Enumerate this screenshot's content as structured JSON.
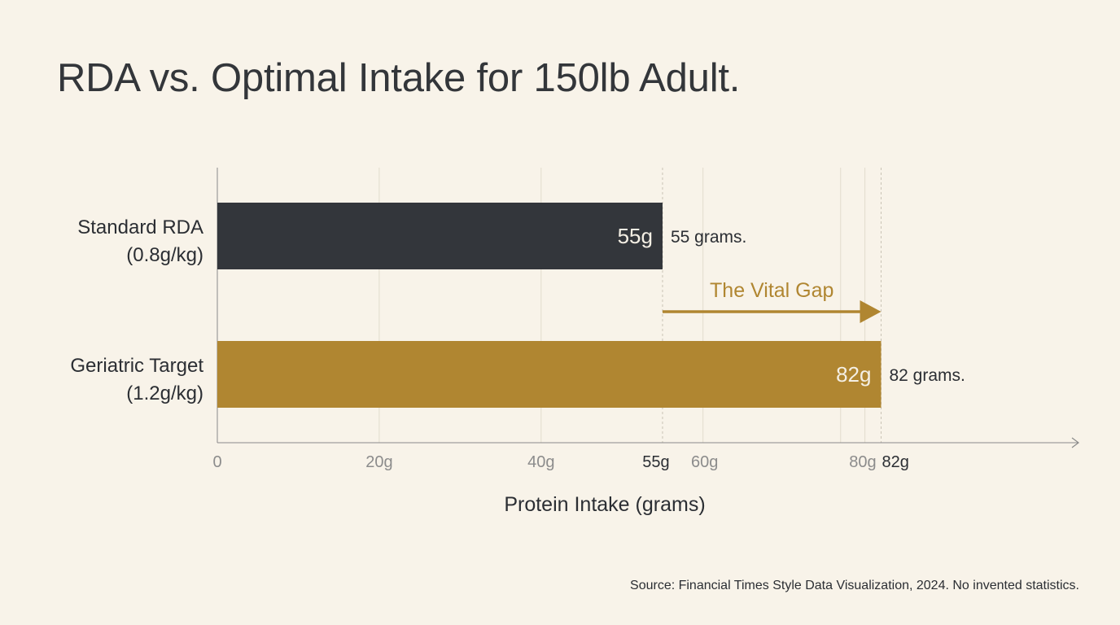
{
  "title": "RDA vs. Optimal Intake for 150lb Adult.",
  "source": "Source: Financial Times Style Data Visualization, 2024. No invented statistics.",
  "colors": {
    "background": "#f8f3e9",
    "rda_bar": "#33363b",
    "target_bar": "#b08631",
    "gap_arrow": "#b08631",
    "grid": "#e2dccd",
    "axis": "#8a8a8a",
    "tick_text": "#8c8c8c",
    "text": "#2b2e33"
  },
  "chart_data": {
    "type": "bar",
    "orientation": "horizontal",
    "xlabel": "Protein Intake (grams)",
    "xlim": [
      0,
      88
    ],
    "x_ticks": [
      {
        "value": 0,
        "label": "0"
      },
      {
        "value": 20,
        "label": "20g"
      },
      {
        "value": 40,
        "label": "40g"
      },
      {
        "value": 55,
        "label": "55g",
        "emphasis": true
      },
      {
        "value": 60,
        "label": "60g"
      },
      {
        "value": 80,
        "label": "80g"
      },
      {
        "value": 82,
        "label": "82g",
        "emphasis": true
      }
    ],
    "extra_gridlines": [
      77
    ],
    "reference_lines": [
      55,
      82
    ],
    "categories": [
      {
        "line1": "Standard RDA",
        "line2": "(0.8g/kg)"
      },
      {
        "line1": "Geriatric Target",
        "line2": "(1.2g/kg)"
      }
    ],
    "values": [
      55,
      82
    ],
    "bar_labels": [
      "55g",
      "82g"
    ],
    "outside_labels": [
      "55 grams.",
      "82 grams."
    ],
    "annotation": {
      "text": "The Vital Gap",
      "from": 55,
      "to": 82
    },
    "grid": true
  }
}
